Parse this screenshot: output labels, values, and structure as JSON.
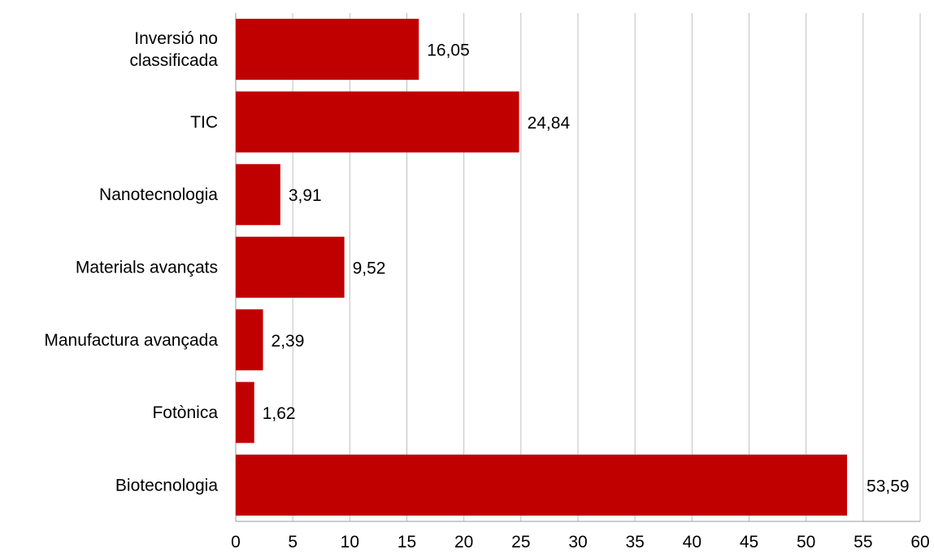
{
  "chart_data": {
    "type": "bar",
    "orientation": "horizontal",
    "categories": [
      [
        "Inversió no",
        "classificada"
      ],
      [
        "TIC"
      ],
      [
        "Nanotecnologia"
      ],
      [
        "Materials avançats"
      ],
      [
        "Manufactura avançada"
      ],
      [
        "Fotònica"
      ],
      [
        "Biotecnologia"
      ]
    ],
    "values": [
      16.05,
      24.84,
      3.91,
      9.52,
      2.39,
      1.62,
      53.59
    ],
    "value_labels": [
      "16,05",
      "24,84",
      "3,91",
      "9,52",
      "2,39",
      "1,62",
      "53,59"
    ],
    "xlim": [
      0,
      60
    ],
    "xticks": [
      0,
      5,
      10,
      15,
      20,
      25,
      30,
      35,
      40,
      45,
      50,
      55,
      60
    ],
    "grid": true,
    "legend": "none",
    "bar_color": "#c00000"
  }
}
